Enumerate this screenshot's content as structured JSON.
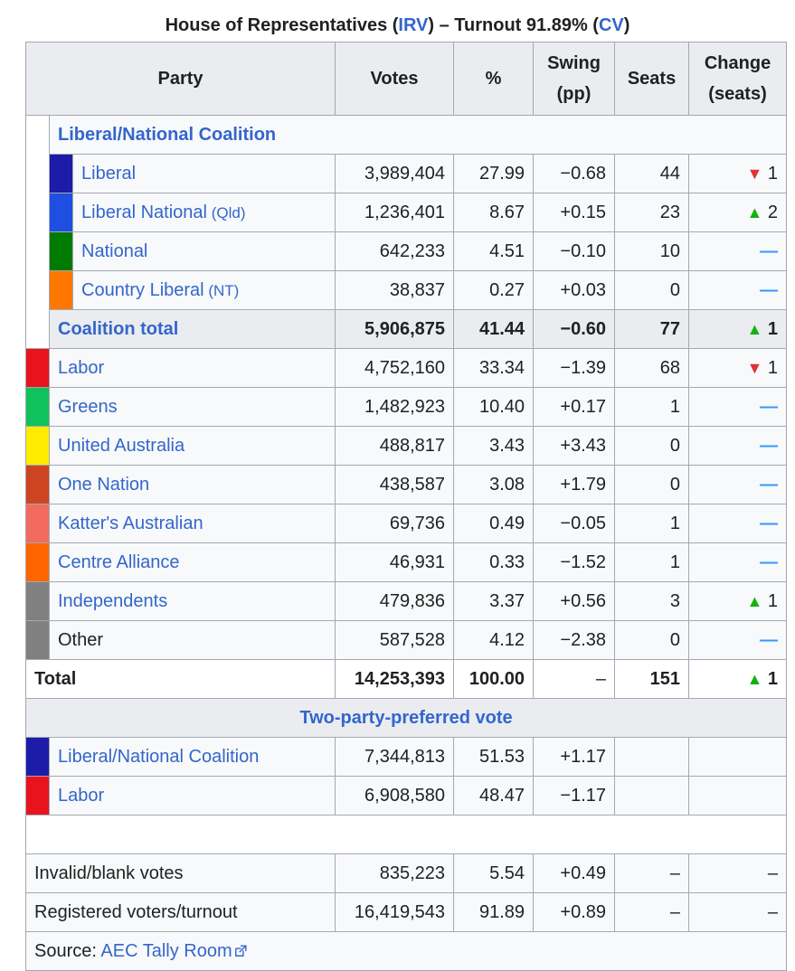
{
  "caption": {
    "pre": "House of Representatives (",
    "irv": "IRV",
    "mid": ") – Turnout 91.89% (",
    "cv": "CV",
    "post": ")"
  },
  "headers": {
    "party": "Party",
    "votes": "Votes",
    "pct": "%",
    "swing": "Swing (pp)",
    "seats": "Seats",
    "change": "Change (seats)"
  },
  "coalition": {
    "title": "Liberal/National Coalition",
    "rows": [
      {
        "name": "Liberal",
        "suffix": "",
        "color": "#1c1ca8",
        "votes": "3,989,404",
        "pct": "27.99",
        "swing": "−0.68",
        "seats": "44",
        "change_dir": "down",
        "change": "1"
      },
      {
        "name": "Liberal National",
        "suffix": " (Qld)",
        "color": "#1f4fe0",
        "votes": "1,236,401",
        "pct": "8.67",
        "swing": "+0.15",
        "seats": "23",
        "change_dir": "up",
        "change": "2"
      },
      {
        "name": "National",
        "suffix": "",
        "color": "#007a00",
        "votes": "642,233",
        "pct": "4.51",
        "swing": "−0.10",
        "seats": "10",
        "change_dir": "none",
        "change": "–"
      },
      {
        "name": "Country Liberal",
        "suffix": " (NT)",
        "color": "#ff7700",
        "votes": "38,837",
        "pct": "0.27",
        "swing": "+0.03",
        "seats": "0",
        "change_dir": "none",
        "change": "–"
      }
    ],
    "total": {
      "label": "Coalition total",
      "votes": "5,906,875",
      "pct": "41.44",
      "swing": "−0.60",
      "seats": "77",
      "change_dir": "up",
      "change": "1"
    }
  },
  "parties": [
    {
      "name": "Labor",
      "link": true,
      "color": "#e8131c",
      "votes": "4,752,160",
      "pct": "33.34",
      "swing": "−1.39",
      "seats": "68",
      "change_dir": "down",
      "change": "1"
    },
    {
      "name": "Greens",
      "link": true,
      "color": "#10c25b",
      "votes": "1,482,923",
      "pct": "10.40",
      "swing": "+0.17",
      "seats": "1",
      "change_dir": "none",
      "change": "–"
    },
    {
      "name": "United Australia",
      "link": true,
      "color": "#ffec00",
      "votes": "488,817",
      "pct": "3.43",
      "swing": "+3.43",
      "seats": "0",
      "change_dir": "none",
      "change": "–"
    },
    {
      "name": "One Nation",
      "link": true,
      "color": "#cc4422",
      "votes": "438,587",
      "pct": "3.08",
      "swing": "+1.79",
      "seats": "0",
      "change_dir": "none",
      "change": "–"
    },
    {
      "name": "Katter's Australian",
      "link": true,
      "color": "#f26b5e",
      "votes": "69,736",
      "pct": "0.49",
      "swing": "−0.05",
      "seats": "1",
      "change_dir": "none",
      "change": "–"
    },
    {
      "name": "Centre Alliance",
      "link": true,
      "color": "#ff6600",
      "votes": "46,931",
      "pct": "0.33",
      "swing": "−1.52",
      "seats": "1",
      "change_dir": "none",
      "change": "–"
    },
    {
      "name": "Independents",
      "link": true,
      "color": "#808080",
      "votes": "479,836",
      "pct": "3.37",
      "swing": "+0.56",
      "seats": "3",
      "change_dir": "up",
      "change": "1"
    },
    {
      "name": "Other",
      "link": false,
      "color": "#808080",
      "votes": "587,528",
      "pct": "4.12",
      "swing": "−2.38",
      "seats": "0",
      "change_dir": "none",
      "change": "–"
    }
  ],
  "total": {
    "label": "Total",
    "votes": "14,253,393",
    "pct": "100.00",
    "swing": "–",
    "seats": "151",
    "change_dir": "up",
    "change": "1"
  },
  "tpp": {
    "title": "Two-party-preferred vote",
    "rows": [
      {
        "name": "Liberal/National Coalition",
        "color": "#1c1ca8",
        "votes": "7,344,813",
        "pct": "51.53",
        "swing": "+1.17"
      },
      {
        "name": "Labor",
        "color": "#e8131c",
        "votes": "6,908,580",
        "pct": "48.47",
        "swing": "−1.17"
      }
    ]
  },
  "extra": [
    {
      "label": "Invalid/blank votes",
      "votes": "835,223",
      "pct": "5.54",
      "swing": "+0.49",
      "seats": "–",
      "change": "–"
    },
    {
      "label": "Registered voters/turnout",
      "votes": "16,419,543",
      "pct": "91.89",
      "swing": "+0.89",
      "seats": "–",
      "change": "–"
    }
  ],
  "source": {
    "label": "Source: ",
    "link": "AEC Tally Room"
  },
  "colors": {
    "link": "#3366cc",
    "up": "#14b014",
    "down": "#dd3333",
    "neutral": "#3399ff"
  }
}
